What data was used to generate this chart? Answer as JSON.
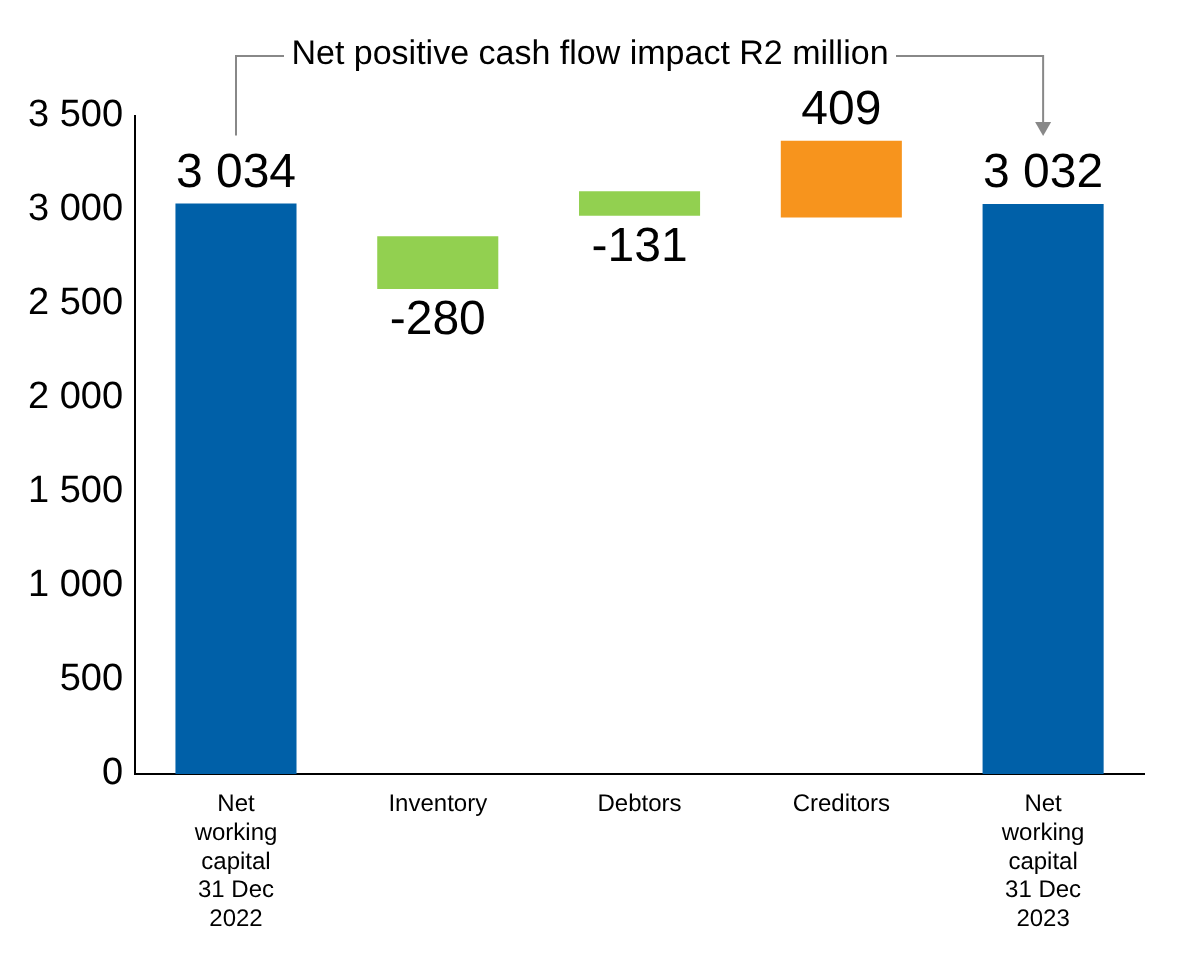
{
  "chart_data": {
    "type": "bar",
    "categories": [
      "Net working capital 31 Dec 2022",
      "Inventory",
      "Debtors",
      "Creditors",
      "Net working capital 31 Dec 2023"
    ],
    "values": [
      3034,
      -280,
      -131,
      409,
      3032
    ],
    "base": [
      0,
      2860,
      3100,
      2960,
      0
    ],
    "colors": [
      "#0060a8",
      "#92d050",
      "#92d050",
      "#f7941d",
      "#0060a8"
    ],
    "value_labels": [
      "3 034",
      "-280",
      "-131",
      "409",
      "3 032"
    ],
    "annotations": [
      "Net positive cash flow impact R2 million"
    ],
    "ylim": [
      0,
      3500
    ],
    "yticks": [
      0,
      {
        "value": 500,
        "label": "500"
      },
      {
        "value": 1000,
        "label": "1 000"
      },
      {
        "value": 1500,
        "label": "1 500"
      },
      {
        "value": 2000,
        "label": "2 000"
      },
      {
        "value": 2500,
        "label": "2 500"
      },
      {
        "value": 3000,
        "label": "3 000"
      },
      {
        "value": 3500,
        "label": "3 500"
      }
    ],
    "grid": false,
    "legend": false
  }
}
